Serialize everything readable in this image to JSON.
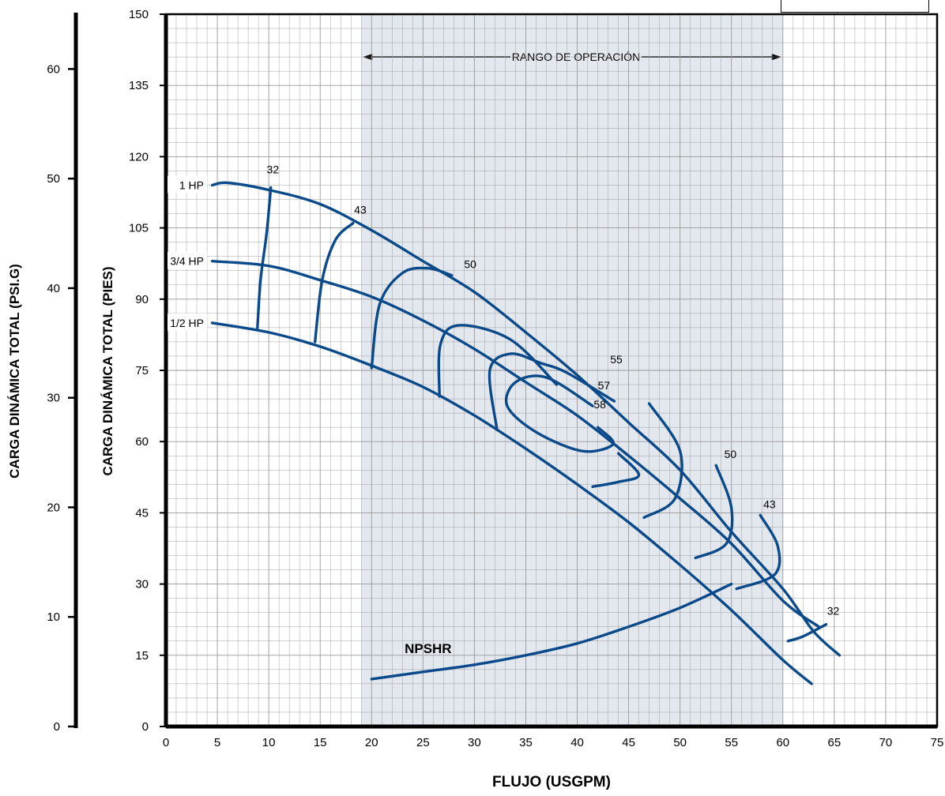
{
  "chart_data": {
    "type": "line",
    "xlabel": "FLUJO (USGPM)",
    "ylabel": "CARGA DINÁMICA TOTAL (PIES)",
    "ylabel2": "CARGA DINÁMICA TOTAL (PSI.G)",
    "xlim": [
      0,
      75
    ],
    "ylim": [
      0,
      150
    ],
    "ylim2": [
      0,
      65
    ],
    "xticks": [
      "0",
      "5",
      "10",
      "15",
      "20",
      "25",
      "30",
      "35",
      "40",
      "45",
      "50",
      "55",
      "60",
      "65",
      "70",
      "75"
    ],
    "yticks": [
      "0",
      "15",
      "30",
      "45",
      "60",
      "75",
      "90",
      "105",
      "120",
      "135",
      "150"
    ],
    "yticks2": [
      "0",
      "10",
      "20",
      "30",
      "40",
      "50",
      "60"
    ],
    "grid": true,
    "operating_range": {
      "label": "RANGO DE OPERACIÓN",
      "x": [
        19,
        60
      ]
    },
    "series": [
      {
        "name": "1 HP",
        "color": "#0b4a8a",
        "x": [
          4.5,
          6,
          10,
          15,
          20,
          25,
          30,
          35,
          40,
          45,
          50,
          55,
          60,
          63,
          65.5
        ],
        "y": [
          114,
          114.5,
          113,
          110,
          104.5,
          98,
          91.5,
          83,
          74,
          64,
          54,
          41,
          29,
          20,
          15
        ]
      },
      {
        "name": "3/4 HP",
        "color": "#0b4a8a",
        "x": [
          4.5,
          10,
          15,
          20,
          25,
          30,
          35,
          40,
          45,
          50,
          55,
          60,
          63.5
        ],
        "y": [
          98,
          97,
          94,
          90.5,
          85.5,
          79.5,
          72.5,
          65.5,
          57,
          48,
          38.5,
          26.5,
          21
        ]
      },
      {
        "name": "1/2 HP",
        "color": "#0b4a8a",
        "x": [
          4.5,
          10,
          15,
          20,
          25,
          30,
          35,
          40,
          45,
          50,
          55,
          60,
          62.8
        ],
        "y": [
          85,
          83,
          80,
          76,
          71.5,
          65.5,
          58.5,
          51,
          43,
          34,
          24.5,
          14,
          9
        ]
      },
      {
        "name": "NPSHR",
        "color": "#0b4a8a",
        "x": [
          20,
          25,
          30,
          35,
          40,
          45,
          50,
          55
        ],
        "y": [
          10,
          11.5,
          13,
          15,
          17.5,
          21,
          25,
          30
        ]
      }
    ],
    "efficiency_labels": [
      "32",
      "43",
      "50",
      "55",
      "57",
      "58",
      "50",
      "43",
      "32"
    ],
    "curve_labels": [
      "1 HP",
      "3/4 HP",
      "1/2 HP",
      "NPSHR"
    ],
    "colors": {
      "curve": "#0b4a8a",
      "operating_range": "#e3e8ef",
      "grid": "#999999",
      "axis": "#000000"
    }
  }
}
